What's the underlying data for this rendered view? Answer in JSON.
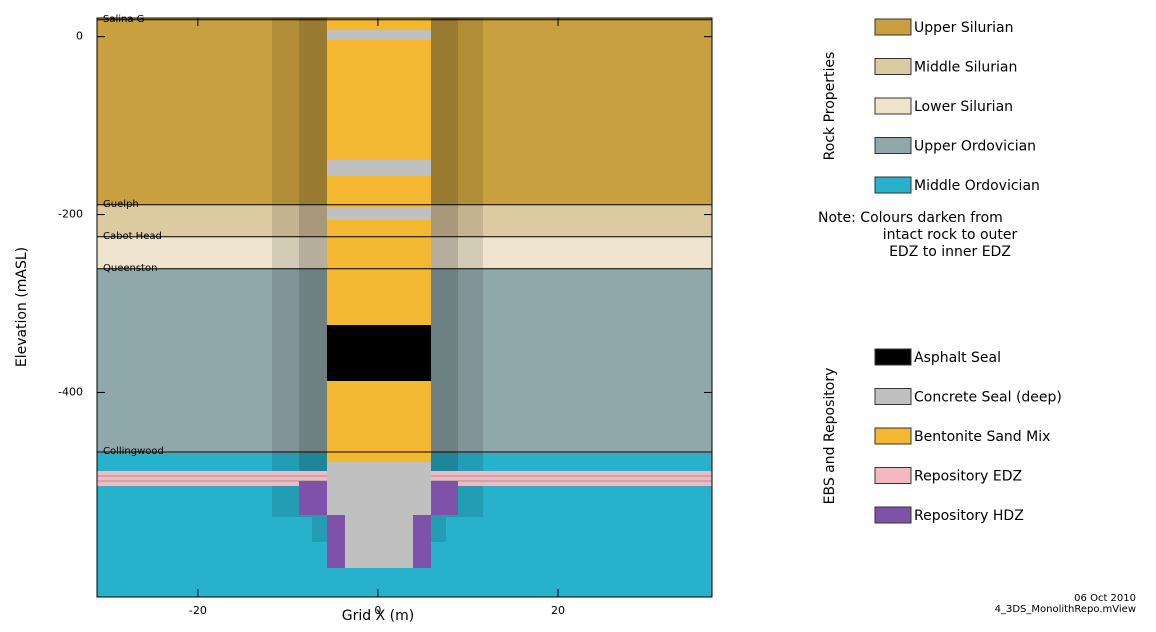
{
  "chart_data": {
    "type": "section",
    "x_label": "Grid X  (m)",
    "y_label": "Elevation (mASL)",
    "xlim": [
      -31.2,
      37.1
    ],
    "ylim": [
      -630,
      21
    ],
    "xticks": [
      -20,
      0,
      20
    ],
    "yticks": [
      0,
      -200,
      -400
    ],
    "horizons": [
      {
        "label": "Salina G",
        "elevation": 19
      },
      {
        "label": "Guelph",
        "elevation": -189
      },
      {
        "label": "Cabot Head",
        "elevation": -225
      },
      {
        "label": "Queenston",
        "elevation": -261
      },
      {
        "label": "Collingwood",
        "elevation": -467
      }
    ],
    "legends": [
      {
        "title": "Rock Properties",
        "items": [
          {
            "label": "Upper Silurian",
            "color": "#c8a040"
          },
          {
            "label": "Middle Silurian",
            "color": "#dccaa0"
          },
          {
            "label": "Lower Silurian",
            "color": "#eee4cd"
          },
          {
            "label": "Upper Ordovician",
            "color": "#8fa8ab"
          },
          {
            "label": "Middle Ordovician",
            "color": "#27b1cb"
          }
        ],
        "note": [
          "Note:  Colours darken from",
          "intact rock to outer",
          "EDZ to inner EDZ"
        ]
      },
      {
        "title": "EBS and Repository",
        "items": [
          {
            "label": "Asphalt Seal",
            "color": "#000000"
          },
          {
            "label": "Concrete Seal (deep)",
            "color": "#c0c0c0"
          },
          {
            "label": "Bentonite Sand Mix",
            "color": "#f4b731"
          },
          {
            "label": "Repository EDZ",
            "color": "#f4b8c0"
          },
          {
            "label": "Repository HDZ",
            "color": "#7e52a8"
          }
        ]
      }
    ],
    "footer": [
      "06  Oct  2010",
      "4_3DS_MonolithRepo.mView"
    ]
  }
}
